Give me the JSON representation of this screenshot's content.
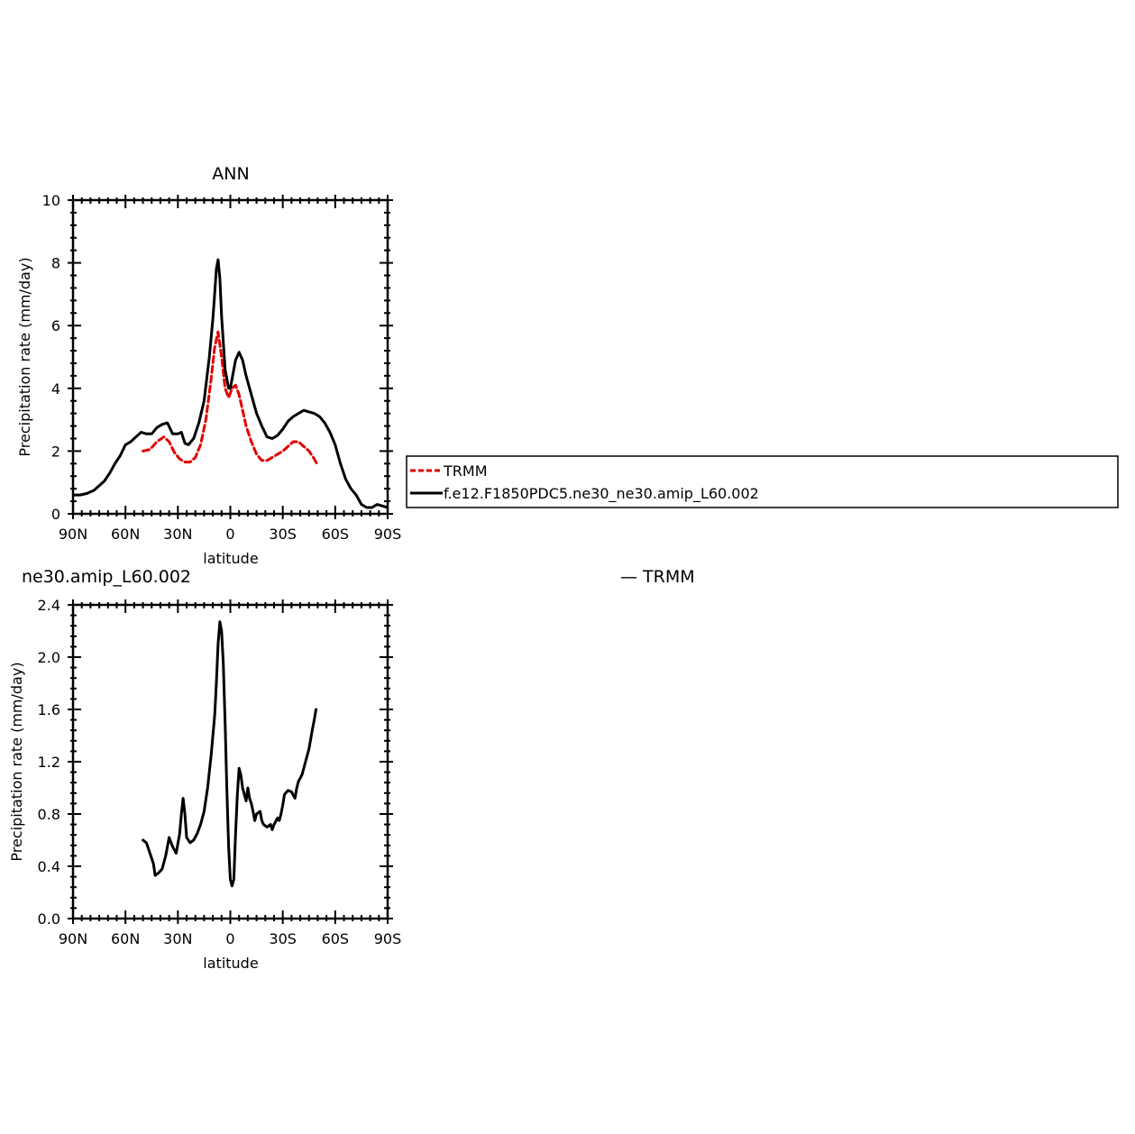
{
  "chart_data": [
    {
      "type": "line",
      "title": "ANN",
      "xlabel": "latitude",
      "ylabel": "Precipitation rate (mm/day)",
      "xlim": [
        -90,
        90
      ],
      "ylim": [
        0,
        10
      ],
      "xticks": [
        -90,
        -60,
        -30,
        0,
        30,
        60,
        90
      ],
      "xtick_labels": [
        "90N",
        "60N",
        "30N",
        "0",
        "30S",
        "60S",
        "90S"
      ],
      "yticks": [
        0,
        2,
        4,
        6,
        8,
        10
      ],
      "ytick_labels": [
        "0",
        "2",
        "4",
        "6",
        "8",
        "10"
      ],
      "legend": {
        "placement": "right",
        "entries": [
          "TRMM",
          "f.e12.F1850PDC5.ne30_ne30.amip_L60.002"
        ]
      },
      "series": [
        {
          "name": "TRMM",
          "color": "#e00000",
          "dash": "dashed",
          "x": [
            -50,
            -46,
            -42,
            -38,
            -35,
            -32,
            -29,
            -26,
            -23,
            -20,
            -17,
            -14,
            -11,
            -9,
            -7,
            -5,
            -3,
            -1,
            1,
            3,
            5,
            7,
            9,
            12,
            15,
            18,
            21,
            24,
            27,
            30,
            33,
            36,
            39,
            42,
            45,
            48,
            50
          ],
          "y": [
            2.0,
            2.05,
            2.3,
            2.45,
            2.3,
            1.95,
            1.75,
            1.65,
            1.65,
            1.8,
            2.2,
            3.0,
            4.3,
            5.3,
            5.8,
            5.0,
            4.0,
            3.7,
            4.0,
            4.1,
            3.8,
            3.3,
            2.8,
            2.3,
            1.9,
            1.7,
            1.7,
            1.8,
            1.9,
            2.0,
            2.15,
            2.3,
            2.3,
            2.15,
            2.0,
            1.75,
            1.55
          ]
        },
        {
          "name": "f.e12.F1850PDC5.ne30_ne30.amip_L60.002",
          "color": "#000000",
          "dash": "solid",
          "x": [
            -90,
            -86,
            -82,
            -78,
            -75,
            -72,
            -69,
            -66,
            -63,
            -60,
            -57,
            -54,
            -51,
            -48,
            -45,
            -42,
            -39,
            -36,
            -33,
            -30,
            -28,
            -26,
            -24,
            -21,
            -18,
            -15,
            -12,
            -10,
            -9,
            -8,
            -7,
            -6,
            -5,
            -3,
            -1,
            0,
            1,
            3,
            5,
            7,
            9,
            12,
            15,
            18,
            21,
            24,
            27,
            30,
            33,
            36,
            39,
            42,
            45,
            48,
            51,
            54,
            57,
            60,
            63,
            66,
            69,
            72,
            75,
            78,
            81,
            84,
            87,
            90
          ],
          "y": [
            0.6,
            0.6,
            0.65,
            0.75,
            0.9,
            1.05,
            1.3,
            1.6,
            1.85,
            2.2,
            2.3,
            2.45,
            2.6,
            2.55,
            2.55,
            2.75,
            2.85,
            2.9,
            2.55,
            2.55,
            2.6,
            2.25,
            2.2,
            2.4,
            2.9,
            3.6,
            5.0,
            6.2,
            7.0,
            7.8,
            8.1,
            7.5,
            6.3,
            4.6,
            4.0,
            4.0,
            4.3,
            4.9,
            5.15,
            4.9,
            4.4,
            3.8,
            3.2,
            2.8,
            2.45,
            2.4,
            2.5,
            2.7,
            2.95,
            3.1,
            3.2,
            3.3,
            3.25,
            3.2,
            3.1,
            2.9,
            2.6,
            2.2,
            1.6,
            1.1,
            0.8,
            0.6,
            0.3,
            0.2,
            0.2,
            0.3,
            0.25,
            0.2
          ]
        }
      ]
    },
    {
      "type": "line",
      "title": "ne30.amip_L60.002",
      "title_right": "— TRMM",
      "xlabel": "latitude",
      "ylabel": "Precipitation rate (mm/day)",
      "xlim": [
        -90,
        90
      ],
      "ylim": [
        0,
        2.4
      ],
      "xticks": [
        -90,
        -60,
        -30,
        0,
        30,
        60,
        90
      ],
      "xtick_labels": [
        "90N",
        "60N",
        "30N",
        "0",
        "30S",
        "60S",
        "90S"
      ],
      "yticks": [
        0,
        0.4,
        0.8,
        1.2,
        1.6,
        2.0,
        2.4
      ],
      "ytick_labels": [
        "0.0",
        "0.4",
        "0.8",
        "1.2",
        "1.6",
        "2.0",
        "2.4"
      ],
      "series": [
        {
          "color": "#000000",
          "dash": "solid",
          "x": [
            -50,
            -48,
            -46,
            -44,
            -43,
            -41,
            -39,
            -37,
            -35,
            -33,
            -31,
            -29,
            -28,
            -27,
            -26,
            -25,
            -23,
            -21,
            -19,
            -17,
            -15,
            -13,
            -11,
            -9,
            -8,
            -7,
            -6,
            -5,
            -4,
            -3,
            -2,
            -1,
            0,
            1,
            2,
            3,
            4,
            5,
            6,
            7,
            8,
            9,
            10,
            11,
            12,
            13,
            14,
            15,
            17,
            18,
            19,
            21,
            23,
            24,
            25,
            27,
            28,
            29,
            30,
            31,
            33,
            35,
            37,
            38,
            39,
            41,
            43,
            45,
            47,
            48,
            49
          ],
          "y": [
            0.6,
            0.58,
            0.5,
            0.42,
            0.33,
            0.35,
            0.38,
            0.48,
            0.62,
            0.55,
            0.5,
            0.65,
            0.8,
            0.92,
            0.8,
            0.62,
            0.58,
            0.6,
            0.65,
            0.72,
            0.82,
            1.0,
            1.25,
            1.55,
            1.8,
            2.1,
            2.27,
            2.2,
            1.95,
            1.5,
            1.0,
            0.55,
            0.3,
            0.25,
            0.3,
            0.65,
            0.95,
            1.15,
            1.1,
            1.0,
            0.95,
            0.9,
            1.0,
            0.92,
            0.88,
            0.82,
            0.75,
            0.8,
            0.82,
            0.75,
            0.72,
            0.7,
            0.72,
            0.68,
            0.72,
            0.77,
            0.75,
            0.8,
            0.87,
            0.95,
            0.98,
            0.97,
            0.92,
            1.0,
            1.05,
            1.1,
            1.2,
            1.3,
            1.45,
            1.52,
            1.6
          ]
        }
      ]
    }
  ]
}
